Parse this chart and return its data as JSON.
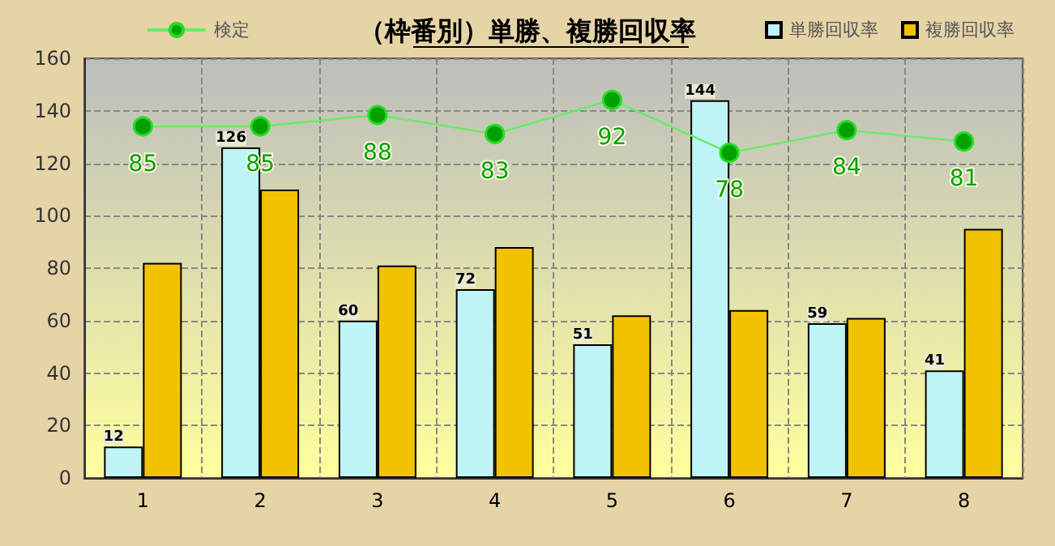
{
  "chart_data": {
    "type": "bar",
    "title": "（枠番別）単勝、複勝回収率",
    "categories": [
      "1",
      "2",
      "3",
      "4",
      "5",
      "6",
      "7",
      "8"
    ],
    "series": [
      {
        "name": "単勝回収率",
        "color": "#bff4f6",
        "values": [
          12,
          126,
          60,
          72,
          51,
          144,
          59,
          41
        ],
        "value_labels": [
          "12",
          "126",
          "60",
          "72",
          "51",
          "144",
          "59",
          "41"
        ]
      },
      {
        "name": "複勝回収率",
        "color": "#f2c200",
        "values": [
          82,
          110,
          81,
          88,
          62,
          64,
          61,
          95
        ]
      },
      {
        "name": "検定",
        "type": "line",
        "axis": "y2",
        "color": "#00a000",
        "values": [
          85,
          85,
          88,
          83,
          92,
          78,
          84,
          81
        ],
        "value_labels": [
          "85",
          "85",
          "88",
          "83",
          "92",
          "78",
          "84",
          "81"
        ]
      }
    ],
    "ylim": [
      0,
      160
    ],
    "yticks": [
      0,
      20,
      40,
      60,
      80,
      100,
      120,
      140,
      160
    ],
    "y2lim": [
      -8,
      103
    ],
    "grid": true,
    "legend": "top",
    "marker": "circle",
    "line_style": "solid"
  }
}
